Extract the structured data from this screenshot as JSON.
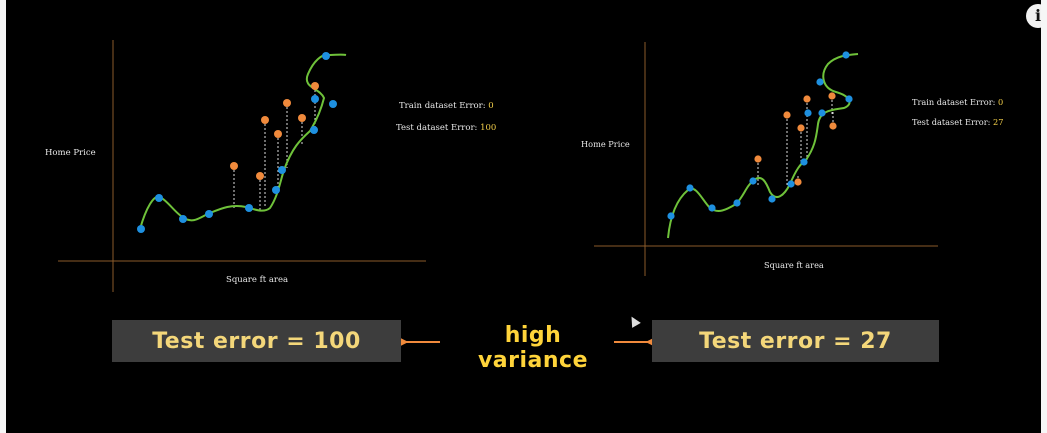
{
  "info_icon": "info-icon",
  "left_chart": {
    "ylabel": "Home Price",
    "xlabel": "Square ft area",
    "train_label": "Train dataset Error: ",
    "train_value": "0",
    "test_label": "Test dataset Error: ",
    "test_value": "100"
  },
  "right_chart": {
    "ylabel": "Home Price",
    "xlabel": "Square ft area",
    "train_label": "Train dataset Error: ",
    "train_value": "0",
    "test_label": "Test dataset Error: ",
    "test_value": "27"
  },
  "bottom": {
    "left_box": "Test error = 100",
    "middle_label": "high variance",
    "right_box": "Test error = 27"
  },
  "colors": {
    "curve": "#6fc23a",
    "train_point": "#1e90e0",
    "test_point": "#f08a3c",
    "axis": "#8a5a2a",
    "value_highlight": "#f4d04a"
  }
}
